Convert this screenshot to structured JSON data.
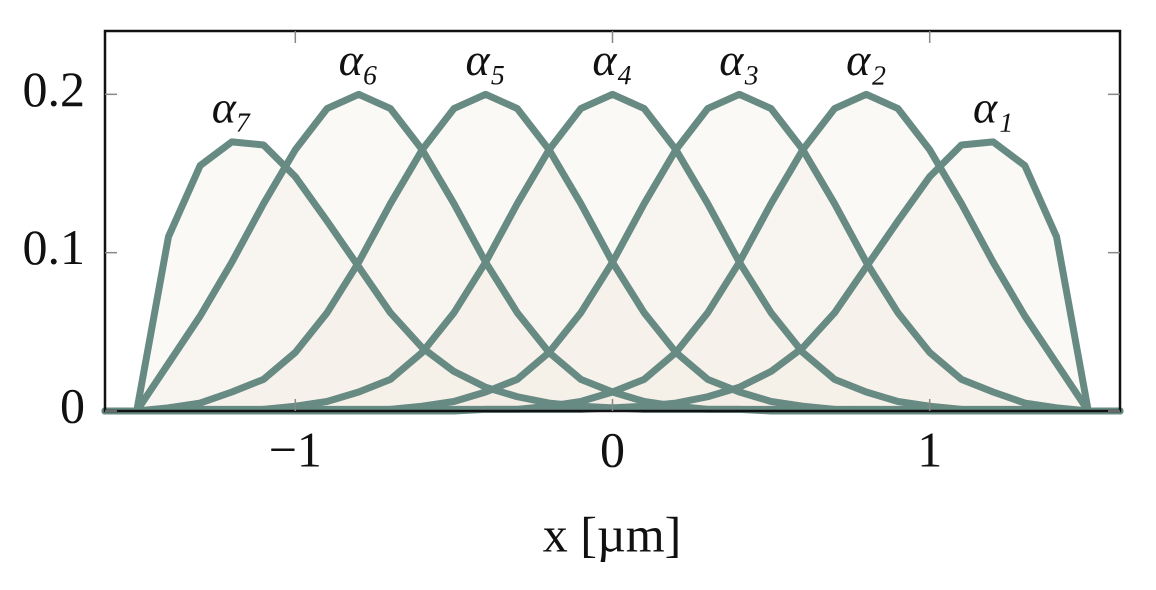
{
  "chart_data": {
    "type": "line",
    "x_label": "x [µm]",
    "x": [
      -1.6,
      -1.5,
      -1.4,
      -1.3,
      -1.2,
      -1.1,
      -1.0,
      -0.9,
      -0.8,
      -0.7,
      -0.6,
      -0.5,
      -0.4,
      -0.3,
      -0.2,
      -0.1,
      0,
      0.1,
      0.2,
      0.3,
      0.4,
      0.5,
      0.6,
      0.7,
      0.8,
      0.9,
      1.0,
      1.1,
      1.2,
      1.3,
      1.4,
      1.5,
      1.6
    ],
    "xlim": [
      -1.6,
      1.6
    ],
    "xticks": [
      {
        "value": -1,
        "label": "−1"
      },
      0,
      1
    ],
    "ylim": [
      0,
      0.24
    ],
    "yticks": [
      0,
      0.1,
      0.2
    ],
    "fill": "#f1ece2",
    "series": [
      {
        "name": "α₁",
        "color": "#678a83",
        "values": [
          0,
          0,
          0,
          0,
          0,
          0,
          0,
          0,
          0,
          0,
          0,
          0,
          0.001,
          0.001,
          0.001,
          0.001,
          0.002,
          0.003,
          0.005,
          0.009,
          0.015,
          0.025,
          0.04,
          0.062,
          0.091,
          0.12,
          0.148,
          0.168,
          0.17,
          0.155,
          0.11,
          0,
          0
        ]
      },
      {
        "name": "α₂",
        "color": "#678a83",
        "values": [
          0,
          0,
          0,
          0,
          0,
          0,
          0,
          0,
          0,
          0.001,
          0.001,
          0.001,
          0.001,
          0.001,
          0.003,
          0.006,
          0.012,
          0.02,
          0.037,
          0.062,
          0.094,
          0.131,
          0.165,
          0.191,
          0.2,
          0.191,
          0.165,
          0.131,
          0.094,
          0.06,
          0.03,
          0,
          0
        ]
      },
      {
        "name": "α₃",
        "color": "#678a83",
        "values": [
          0,
          0,
          0,
          0,
          0,
          0.001,
          0.001,
          0.001,
          0.001,
          0.001,
          0.003,
          0.006,
          0.012,
          0.02,
          0.037,
          0.062,
          0.094,
          0.131,
          0.165,
          0.191,
          0.2,
          0.191,
          0.165,
          0.131,
          0.094,
          0.062,
          0.037,
          0.02,
          0.012,
          0.005,
          0.002,
          0,
          0
        ]
      },
      {
        "name": "α₄",
        "color": "#678a83",
        "values": [
          0,
          0,
          0.001,
          0.001,
          0.001,
          0.001,
          0.003,
          0.006,
          0.012,
          0.02,
          0.037,
          0.062,
          0.094,
          0.131,
          0.165,
          0.191,
          0.2,
          0.191,
          0.165,
          0.131,
          0.094,
          0.062,
          0.037,
          0.02,
          0.012,
          0.006,
          0.003,
          0.001,
          0.001,
          0.001,
          0.001,
          0,
          0
        ]
      },
      {
        "name": "α₅",
        "color": "#678a83",
        "values": [
          0,
          0,
          0.002,
          0.005,
          0.012,
          0.02,
          0.037,
          0.062,
          0.094,
          0.131,
          0.165,
          0.191,
          0.2,
          0.191,
          0.165,
          0.131,
          0.094,
          0.062,
          0.037,
          0.02,
          0.012,
          0.006,
          0.003,
          0.001,
          0.001,
          0.001,
          0.001,
          0.001,
          0,
          0,
          0,
          0,
          0
        ]
      },
      {
        "name": "α₆",
        "color": "#678a83",
        "values": [
          0,
          0,
          0.03,
          0.06,
          0.094,
          0.131,
          0.165,
          0.191,
          0.2,
          0.191,
          0.165,
          0.131,
          0.094,
          0.062,
          0.037,
          0.02,
          0.012,
          0.006,
          0.003,
          0.001,
          0.001,
          0.001,
          0.001,
          0.001,
          0,
          0,
          0,
          0,
          0,
          0,
          0,
          0,
          0
        ]
      },
      {
        "name": "α₇",
        "color": "#678a83",
        "values": [
          0,
          0,
          0.11,
          0.155,
          0.17,
          0.168,
          0.148,
          0.12,
          0.091,
          0.062,
          0.04,
          0.025,
          0.015,
          0.009,
          0.005,
          0.003,
          0.002,
          0.001,
          0.001,
          0.001,
          0.001,
          0,
          0,
          0,
          0,
          0,
          0,
          0,
          0,
          0,
          0,
          0,
          0
        ]
      }
    ]
  }
}
